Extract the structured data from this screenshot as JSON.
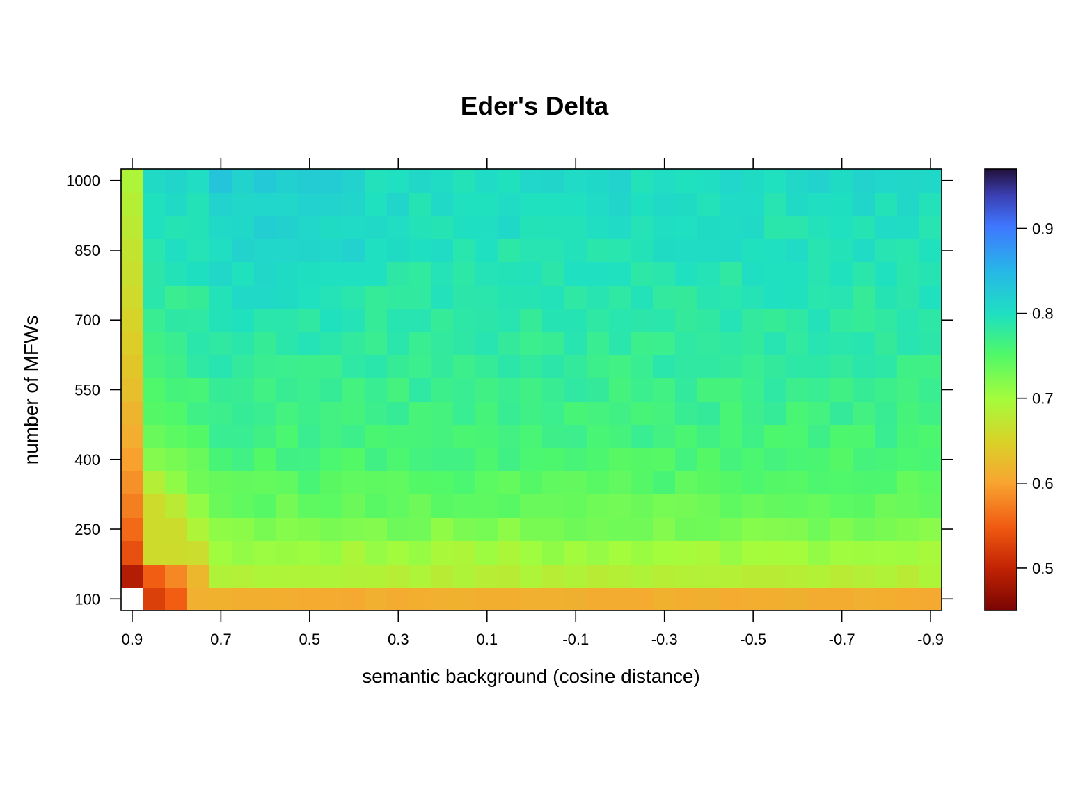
{
  "chart_data": {
    "type": "heatmap",
    "title": "Eder's Delta",
    "xlabel": "semantic background (cosine distance)",
    "ylabel": "number of MFWs",
    "x": [
      0.9,
      0.85,
      0.8,
      0.75,
      0.7,
      0.65,
      0.6,
      0.55,
      0.5,
      0.45,
      0.4,
      0.35,
      0.3,
      0.25,
      0.2,
      0.15,
      0.1,
      0.05,
      0.0,
      -0.05,
      -0.1,
      -0.15,
      -0.2,
      -0.25,
      -0.3,
      -0.35,
      -0.4,
      -0.45,
      -0.5,
      -0.55,
      -0.6,
      -0.65,
      -0.7,
      -0.75,
      -0.8,
      -0.85,
      -0.9
    ],
    "y": [
      100,
      150,
      200,
      250,
      300,
      350,
      400,
      450,
      500,
      550,
      600,
      650,
      700,
      750,
      800,
      850,
      900,
      950,
      1000
    ],
    "x_ticks": [
      "0.9",
      "0.7",
      "0.5",
      "0.3",
      "0.1",
      "-0.1",
      "-0.3",
      "-0.5",
      "-0.7",
      "-0.9"
    ],
    "y_ticks": [
      "100",
      "250",
      "400",
      "550",
      "700",
      "850",
      "1000"
    ],
    "colorbar": {
      "range": [
        0.45,
        0.97
      ],
      "ticks": [
        "0.5",
        "0.6",
        "0.7",
        "0.8",
        "0.9"
      ],
      "scheme": "rainbow: dark red (low) to orange, yellow, green, cyan, blue, dark indigo (high)"
    },
    "missing": [
      [
        0,
        0
      ]
    ],
    "grid": false
  }
}
